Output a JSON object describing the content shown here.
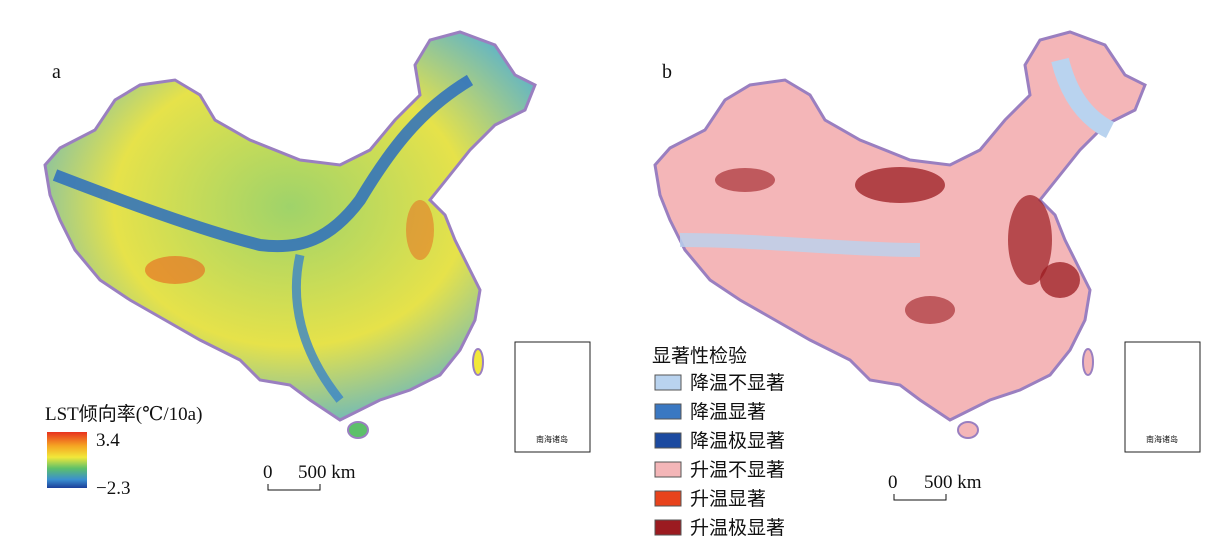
{
  "panels": [
    {
      "label": "a",
      "legend": {
        "title": "LST倾向率(℃/10a)",
        "max_label": "3.4",
        "min_label": "−2.3"
      },
      "scale": {
        "zero": "0",
        "distance": "500 km"
      },
      "inset": "南海诸岛"
    },
    {
      "label": "b",
      "legend": {
        "title": "显著性检验",
        "items": [
          {
            "label": "降温不显著",
            "color": "#b9d3ef"
          },
          {
            "label": "降温显著",
            "color": "#3a78c2"
          },
          {
            "label": "降温极显著",
            "color": "#1c4aa0"
          },
          {
            "label": "升温不显著",
            "color": "#f4b6b8"
          },
          {
            "label": "升温显著",
            "color": "#e8431c"
          },
          {
            "label": "升温极显著",
            "color": "#9b1b20"
          }
        ]
      },
      "scale": {
        "zero": "0",
        "distance": "500 km"
      },
      "inset": "南海诸岛"
    }
  ]
}
